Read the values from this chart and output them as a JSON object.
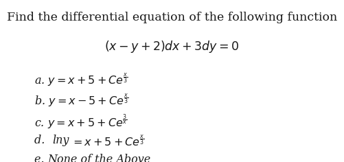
{
  "title_line1": "Find the differential equation of the following function",
  "title_line2": "$(x - y + 2)dx + 3dy = 0$",
  "option_a": "a. $y = x + 5 + Ce^{\\frac{x}{3}}$",
  "option_b": "b. $y = x - 5 + Ce^{\\frac{x}{3}}$",
  "option_c": "c. $y = x + 5 + Ce^{\\frac{3}{x}}$",
  "option_d_prefix": "d. ",
  "option_d_lny": "lny",
  "option_d_rest": "$= x + 5 + Ce^{\\frac{x}{3}}$",
  "option_e": "e. ",
  "option_e_text": "None of the Above",
  "bg_color": "#ffffff",
  "text_color": "#1a1a1a",
  "title_fontsize": 12.5,
  "equation_fontsize": 12.5,
  "option_fontsize": 11.5
}
